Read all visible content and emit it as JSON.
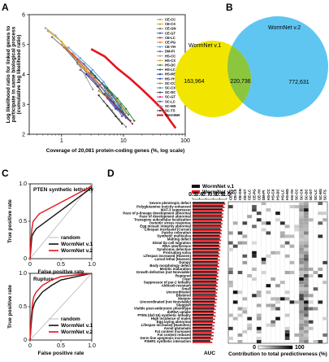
{
  "panels": {
    "a": "A",
    "b": "B",
    "c": "C",
    "d": "D"
  },
  "chart_data": [
    {
      "id": "A",
      "type": "line",
      "ylabel": "Log likelihood ratio for linked genes to participate in same biological process (cumulative log likelihood ratio)",
      "xlabel": "Coverage of 20,081 protein-coding genes (%, log scale)",
      "x_scale": "log",
      "xlim": [
        0.3,
        100
      ],
      "ylim": [
        2,
        6
      ],
      "x_ticks": [
        "1",
        "10",
        "100"
      ],
      "y_ticks": [
        "2",
        "3",
        "4",
        "5",
        "6"
      ],
      "legend_placement": "right",
      "series": [
        {
          "name": "CE-CC",
          "color": "#999999",
          "x": [
            0.55,
            0.8,
            1.2,
            1.8,
            2.5,
            3.2
          ],
          "y": [
            5.55,
            5.3,
            4.9,
            4.4,
            3.9,
            3.5
          ]
        },
        {
          "name": "CE-CX",
          "color": "#d4a000",
          "x": [
            0.6,
            1.0,
            1.6,
            2.5,
            3.6,
            4.8
          ],
          "y": [
            5.45,
            5.1,
            4.6,
            4.1,
            3.7,
            3.35
          ]
        },
        {
          "name": "CE-GN",
          "color": "#666666",
          "x": [
            0.7,
            1.1,
            1.8,
            2.8,
            4.0
          ],
          "y": [
            5.25,
            4.9,
            4.4,
            3.95,
            3.6
          ]
        },
        {
          "name": "CE-GT",
          "color": "#2b4fa3",
          "x": [
            1.5,
            2.3,
            3.5,
            5.0,
            6.5
          ],
          "y": [
            4.7,
            4.35,
            3.95,
            3.55,
            3.2
          ]
        },
        {
          "name": "CE-LC",
          "color": "#cc3333",
          "x": [
            1.2,
            1.8,
            2.8,
            4.2,
            5.5
          ],
          "y": [
            4.85,
            4.5,
            4.05,
            3.65,
            3.3
          ]
        },
        {
          "name": "CE-PG",
          "color": "#e87f2b",
          "x": [
            1.0,
            1.6,
            2.6,
            4.0,
            5.5,
            7.0
          ],
          "y": [
            5.0,
            4.65,
            4.2,
            3.8,
            3.45,
            3.1
          ]
        },
        {
          "name": "CE-YH",
          "color": "#4aa3df",
          "x": [
            1.3,
            2.0,
            3.2,
            4.8,
            6.5,
            8.5
          ],
          "y": [
            4.9,
            4.55,
            4.15,
            3.75,
            3.35,
            2.95
          ]
        },
        {
          "name": "DM-PI",
          "color": "#7b4fa3",
          "x": [
            2.0,
            3.2,
            5.0,
            7.0,
            9.5
          ],
          "y": [
            4.15,
            3.85,
            3.45,
            3.05,
            2.6
          ]
        },
        {
          "name": "HS-CC",
          "color": "#999999",
          "x": [
            1.8,
            2.8,
            4.2,
            6.0,
            8.0
          ],
          "y": [
            4.35,
            4.0,
            3.6,
            3.2,
            2.8
          ]
        },
        {
          "name": "HS-CX",
          "color": "#e3a32b",
          "x": [
            2.2,
            3.5,
            5.5,
            8.0,
            11.0
          ],
          "y": [
            4.25,
            3.9,
            3.5,
            3.1,
            2.7
          ]
        },
        {
          "name": "HS-DC",
          "color": "#4d7a3a",
          "x": [
            3.0,
            4.5,
            6.5,
            9.0,
            12.0
          ],
          "y": [
            4.05,
            3.7,
            3.35,
            3.0,
            2.65
          ]
        },
        {
          "name": "HS-LC",
          "color": "#1f7a1f",
          "x": [
            3.5,
            5.5,
            8.0,
            11.0,
            15.0
          ],
          "y": [
            3.9,
            3.55,
            3.2,
            2.85,
            2.45
          ]
        },
        {
          "name": "HS-MS",
          "color": "#333399",
          "x": [
            2.5,
            3.8,
            5.5,
            7.5
          ],
          "y": [
            4.0,
            3.6,
            3.2,
            2.85
          ]
        },
        {
          "name": "HS-YH",
          "color": "#2255aa",
          "x": [
            3.0,
            4.5,
            6.5,
            9.0,
            11.5
          ],
          "y": [
            4.1,
            3.7,
            3.3,
            2.9,
            2.55
          ]
        },
        {
          "name": "SC-CC",
          "color": "#b38f00",
          "x": [
            4.0,
            6.0,
            8.5,
            11.0
          ],
          "y": [
            3.45,
            3.15,
            2.85,
            2.55
          ]
        },
        {
          "name": "SC-CX",
          "color": "#2b8fb3",
          "x": [
            4.5,
            6.5,
            9.0,
            12.0
          ],
          "y": [
            3.55,
            3.2,
            2.85,
            2.5
          ]
        },
        {
          "name": "SC-DC",
          "color": "#444444",
          "x": [
            5.0,
            7.0,
            9.5,
            13.0
          ],
          "y": [
            3.35,
            3.05,
            2.75,
            2.45
          ]
        },
        {
          "name": "SC-GT",
          "color": "#cc2266",
          "x": [
            5.5,
            7.5,
            10.0,
            14.0
          ],
          "y": [
            3.25,
            2.95,
            2.65,
            2.35
          ]
        },
        {
          "name": "SC-LC",
          "color": "#3355cc",
          "x": [
            6.0,
            8.0,
            11.0
          ],
          "y": [
            3.15,
            2.85,
            2.55
          ]
        },
        {
          "name": "SC-MS",
          "color": "#888888",
          "x": [
            4.8,
            6.5,
            8.5,
            11.0
          ],
          "y": [
            3.1,
            2.8,
            2.5,
            2.25
          ]
        },
        {
          "name": "SC-TS",
          "color": "#333333",
          "x": [
            4.0,
            5.5,
            7.5,
            9.5
          ],
          "y": [
            3.3,
            2.95,
            2.6,
            2.35
          ]
        },
        {
          "name": "WormNet",
          "color": "#e8131c",
          "x": [
            3.0,
            5.0,
            8.0,
            13.0,
            20.0,
            30.0,
            42.0,
            55.0,
            70.0
          ],
          "y": [
            4.85,
            4.6,
            4.2,
            3.85,
            3.5,
            3.15,
            2.85,
            2.5,
            2.2
          ]
        }
      ]
    },
    {
      "id": "B",
      "type": "venn",
      "sets": [
        {
          "name": "WormNet v.1",
          "color": "#f2e600"
        },
        {
          "name": "WormNet v.2",
          "color": "#5fc6f2"
        }
      ],
      "overlap_color": "#8cc63f",
      "counts": {
        "only_v1": "163,964",
        "both": "220,736",
        "only_v2": "772,631"
      }
    },
    {
      "id": "C1",
      "type": "line",
      "title": "PTEN synthetic lethality",
      "xlabel": "False positive rate",
      "ylabel": "True positive rate",
      "xlim": [
        0,
        1
      ],
      "ylim": [
        0,
        1
      ],
      "ticks": [
        "0",
        "0.5",
        "1.0"
      ],
      "legend_placement": "bottom-right",
      "series": [
        {
          "name": "random",
          "color": "#bbbbbb",
          "x": [
            0,
            1
          ],
          "y": [
            0,
            1
          ]
        },
        {
          "name": "WormNet v.1",
          "color": "#111111",
          "x": [
            0,
            0.01,
            0.02,
            0.03,
            0.06,
            0.1,
            1.0
          ],
          "y": [
            0,
            0.1,
            0.2,
            0.3,
            0.35,
            0.4,
            0.95
          ]
        },
        {
          "name": "WormNet v.2",
          "color": "#e8131c",
          "x": [
            0,
            0.01,
            0.03,
            0.05,
            0.1,
            0.15,
            1.0
          ],
          "y": [
            0,
            0.2,
            0.4,
            0.5,
            0.55,
            0.6,
            0.97
          ]
        }
      ]
    },
    {
      "id": "C2",
      "type": "line",
      "title": "Rupture",
      "xlabel": "False positive rate",
      "ylabel": "True positive rate",
      "xlim": [
        0,
        1
      ],
      "ylim": [
        0,
        1
      ],
      "ticks": [
        "0",
        "0.5",
        "1.0"
      ],
      "legend_placement": "bottom-right",
      "series": [
        {
          "name": "random",
          "color": "#bbbbbb",
          "x": [
            0,
            1
          ],
          "y": [
            0,
            1
          ]
        },
        {
          "name": "WormNet v.1",
          "color": "#111111",
          "x": [
            0,
            0.02,
            0.04,
            0.07,
            0.1,
            0.2,
            0.35,
            0.5,
            1.0
          ],
          "y": [
            0,
            0.25,
            0.45,
            0.55,
            0.6,
            0.72,
            0.82,
            0.9,
            1.0
          ]
        },
        {
          "name": "WormNet v.2",
          "color": "#e8131c",
          "x": [
            0,
            0.02,
            0.04,
            0.06,
            0.1,
            0.2,
            0.35,
            0.5,
            1.0
          ],
          "y": [
            0,
            0.35,
            0.55,
            0.65,
            0.72,
            0.82,
            0.9,
            0.95,
            1.0
          ]
        }
      ]
    },
    {
      "id": "D-bars",
      "type": "bar",
      "orientation": "horizontal",
      "xlabel": "AUC",
      "xlim": [
        0.5,
        1.0
      ],
      "x_ticks": [
        "0.5",
        "0.6",
        "0.7",
        "0.8",
        "0.9",
        "1.0"
      ],
      "legend_placement": "top",
      "categories": [
        "Severe pleiotropic defect",
        "Polyglutamine toxicity enhanced",
        "MAT-3 suppressor",
        "Pace of p-lineage development abnormal",
        "Pace of development abnormal",
        "Transgene subcellular localization",
        "Osmotic stress response",
        "Egg mosaic integrity abnormal",
        "Lifespan increased (Curran)",
        "Patchy coloration",
        "Synthetic multivulva",
        "Molting defect",
        "Distal tip cell migration",
        "RNA interference",
        "Syndromic defective",
        "Protruding vulva",
        "Lifespan increased (Hansen)",
        "Larval lethal (Hansen)",
        "Dumpy",
        "Body morphology defect",
        "Meiotic maturation",
        "Growth defective (not Nonviable)",
        "Ruptured",
        "Clear",
        "Suppressor of par-2 lethality",
        "Aldicarb resistant",
        "Small",
        "Uncoordinated",
        "Blistered",
        "Mutator",
        "Uncoordinated (not Nonviable)",
        "Sluggish",
        "Visible post-embryonic phenotype",
        "dsRNA uptake",
        "PTEN (daf-16) synthetic lethality",
        "High incidence of males",
        "Egg laying abnormal",
        "Lifespan increased (Hamilton)",
        "Avoid glutamate",
        "Fat content increased",
        "Fat content reduced",
        "Germ line apoptosis increased",
        "FSHR1 synthetic interaction"
      ],
      "series": [
        {
          "name": "WormNet v.1",
          "color": "#111111",
          "values": [
            0.97,
            0.95,
            0.94,
            0.93,
            0.93,
            0.93,
            0.92,
            0.92,
            0.91,
            0.91,
            0.9,
            0.9,
            0.89,
            0.89,
            0.89,
            0.88,
            0.88,
            0.87,
            0.87,
            0.87,
            0.86,
            0.86,
            0.86,
            0.85,
            0.85,
            0.85,
            0.84,
            0.84,
            0.84,
            0.83,
            0.83,
            0.82,
            0.82,
            0.81,
            0.81,
            0.8,
            0.8,
            0.79,
            0.79,
            0.78,
            0.78,
            0.77,
            0.76
          ]
        },
        {
          "name": "WormNet v.2",
          "color": "#e8131c",
          "values": [
            0.98,
            0.97,
            0.96,
            0.95,
            0.95,
            0.94,
            0.94,
            0.93,
            0.93,
            0.93,
            0.92,
            0.92,
            0.91,
            0.91,
            0.91,
            0.9,
            0.9,
            0.9,
            0.89,
            0.89,
            0.89,
            0.88,
            0.88,
            0.88,
            0.87,
            0.87,
            0.87,
            0.86,
            0.86,
            0.86,
            0.85,
            0.85,
            0.84,
            0.84,
            0.84,
            0.83,
            0.83,
            0.82,
            0.82,
            0.81,
            0.81,
            0.8,
            0.79
          ]
        }
      ]
    },
    {
      "id": "D-heatmap",
      "type": "heatmap",
      "xlabel": "Contribution to total predictiveness (%)",
      "color_scale": {
        "min": 0,
        "max": 100,
        "min_label": "0",
        "max_label": "100",
        "low_color": "#ffffff",
        "high_color": "#000000"
      },
      "columns": [
        "CE-CC",
        "CE-CX",
        "CE-GN",
        "CE-GT",
        "CE-LC",
        "CE-PG",
        "CE-YH",
        "DM-PI",
        "HS-CC",
        "HS-CX",
        "HS-DC",
        "HS-LC",
        "HS-MS",
        "HS-YH",
        "SC-CC",
        "SC-CX",
        "SC-DC",
        "SC-GT",
        "SC-LC",
        "SC-MS",
        "SC-TS"
      ]
    }
  ],
  "legend_d": {
    "v1": "WormNet v.1",
    "v2": "WormNet v.2"
  }
}
